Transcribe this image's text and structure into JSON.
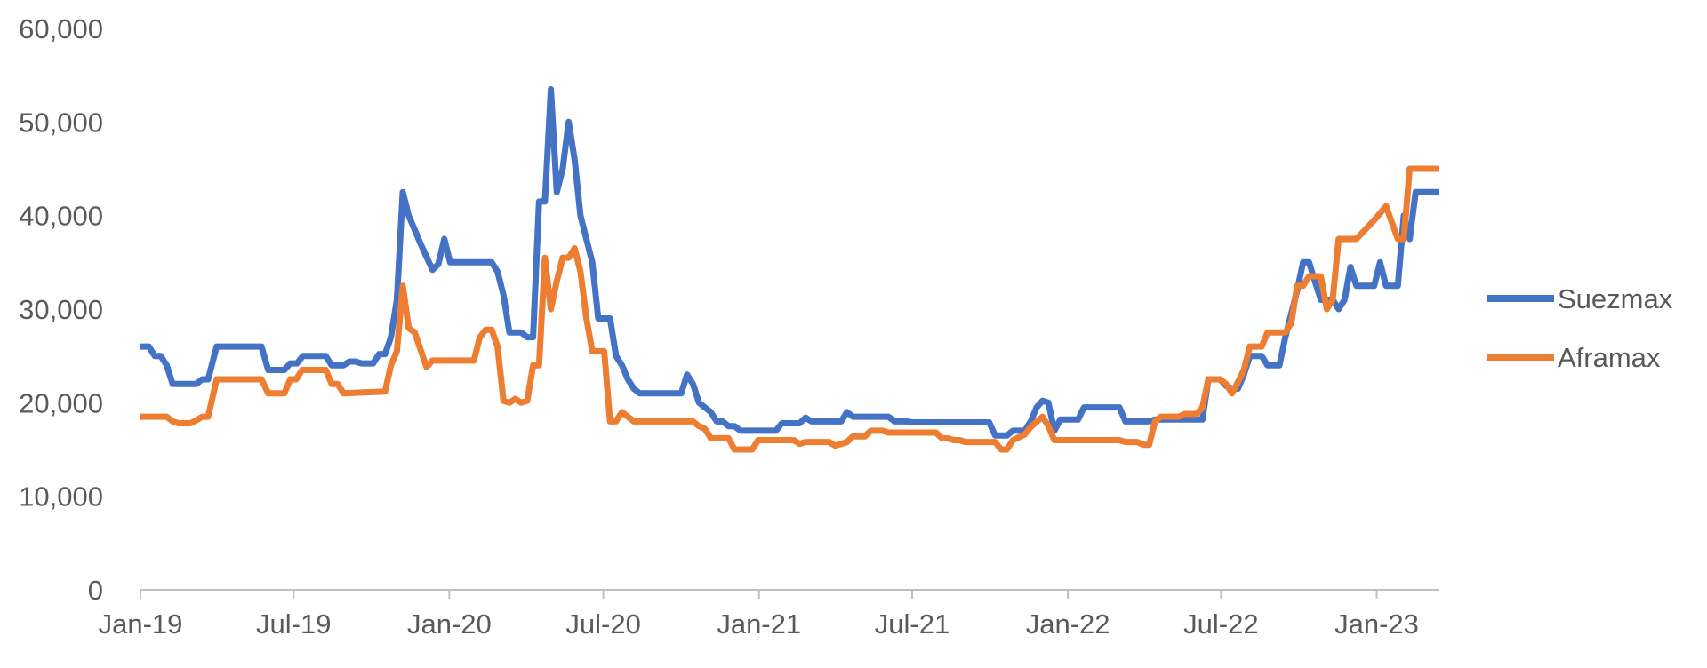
{
  "chart_data": {
    "type": "line",
    "title": "",
    "xlabel": "",
    "ylabel": "",
    "ylim": [
      0,
      60000
    ],
    "yticks": [
      0,
      10000,
      20000,
      30000,
      40000,
      50000,
      60000
    ],
    "ytick_labels": [
      "0",
      "10,000",
      "20,000",
      "30,000",
      "40,000",
      "50,000",
      "60,000"
    ],
    "xticks": [
      "2019-01-01",
      "2019-07-01",
      "2020-01-01",
      "2020-07-01",
      "2021-01-01",
      "2021-07-01",
      "2022-01-01",
      "2022-07-01",
      "2023-01-01"
    ],
    "xtick_labels": [
      "Jan-19",
      "Jul-19",
      "Jan-20",
      "Jul-20",
      "Jan-21",
      "Jul-21",
      "Jan-22",
      "Jul-22",
      "Jan-23"
    ],
    "xlim": [
      "2019-01-01",
      "2023-03-15"
    ],
    "grid": false,
    "legend": "right",
    "series": [
      {
        "name": "Suezmax",
        "color": "#4472C4",
        "points": [
          [
            "2019-01-01",
            26000
          ],
          [
            "2019-01-11",
            26000
          ],
          [
            "2019-01-18",
            25000
          ],
          [
            "2019-01-25",
            25000
          ],
          [
            "2019-02-01",
            24000
          ],
          [
            "2019-02-08",
            22000
          ],
          [
            "2019-03-08",
            22000
          ],
          [
            "2019-03-15",
            22500
          ],
          [
            "2019-03-22",
            22500
          ],
          [
            "2019-04-01",
            26000
          ],
          [
            "2019-05-24",
            26000
          ],
          [
            "2019-06-01",
            23500
          ],
          [
            "2019-06-20",
            23500
          ],
          [
            "2019-06-27",
            24200
          ],
          [
            "2019-07-05",
            24200
          ],
          [
            "2019-07-12",
            25000
          ],
          [
            "2019-08-08",
            25000
          ],
          [
            "2019-08-15",
            24000
          ],
          [
            "2019-08-29",
            24000
          ],
          [
            "2019-09-05",
            24400
          ],
          [
            "2019-09-12",
            24400
          ],
          [
            "2019-09-19",
            24200
          ],
          [
            "2019-10-03",
            24200
          ],
          [
            "2019-10-10",
            25200
          ],
          [
            "2019-10-17",
            25200
          ],
          [
            "2019-10-24",
            27000
          ],
          [
            "2019-10-31",
            31000
          ],
          [
            "2019-11-07",
            42500
          ],
          [
            "2019-11-14",
            40000
          ],
          [
            "2019-11-28",
            37000
          ],
          [
            "2019-12-12",
            34200
          ],
          [
            "2019-12-19",
            34800
          ],
          [
            "2019-12-26",
            37500
          ],
          [
            "2020-01-02",
            35000
          ],
          [
            "2020-02-20",
            35000
          ],
          [
            "2020-02-27",
            34000
          ],
          [
            "2020-03-05",
            31500
          ],
          [
            "2020-03-12",
            27500
          ],
          [
            "2020-03-26",
            27500
          ],
          [
            "2020-04-02",
            27000
          ],
          [
            "2020-04-09",
            27000
          ],
          [
            "2020-04-16",
            41500
          ],
          [
            "2020-04-23",
            41500
          ],
          [
            "2020-04-30",
            53500
          ],
          [
            "2020-05-07",
            42500
          ],
          [
            "2020-05-14",
            45000
          ],
          [
            "2020-05-21",
            50000
          ],
          [
            "2020-05-28",
            46000
          ],
          [
            "2020-06-04",
            40000
          ],
          [
            "2020-06-18",
            35000
          ],
          [
            "2020-06-25",
            29000
          ],
          [
            "2020-07-09",
            29000
          ],
          [
            "2020-07-16",
            25000
          ],
          [
            "2020-07-23",
            24000
          ],
          [
            "2020-07-30",
            22500
          ],
          [
            "2020-08-06",
            21500
          ],
          [
            "2020-08-13",
            21000
          ],
          [
            "2020-10-01",
            21000
          ],
          [
            "2020-10-08",
            23000
          ],
          [
            "2020-10-15",
            22000
          ],
          [
            "2020-10-22",
            20000
          ],
          [
            "2020-11-05",
            19000
          ],
          [
            "2020-11-12",
            18000
          ],
          [
            "2020-11-19",
            18000
          ],
          [
            "2020-11-26",
            17500
          ],
          [
            "2020-12-03",
            17500
          ],
          [
            "2020-12-10",
            17000
          ],
          [
            "2021-01-21",
            17000
          ],
          [
            "2021-01-28",
            17800
          ],
          [
            "2021-02-18",
            17800
          ],
          [
            "2021-02-25",
            18400
          ],
          [
            "2021-03-04",
            18000
          ],
          [
            "2021-04-08",
            18000
          ],
          [
            "2021-04-15",
            19000
          ],
          [
            "2021-04-22",
            18500
          ],
          [
            "2021-06-03",
            18500
          ],
          [
            "2021-06-10",
            18000
          ],
          [
            "2021-06-24",
            18000
          ],
          [
            "2021-07-01",
            17900
          ],
          [
            "2021-09-30",
            17900
          ],
          [
            "2021-10-07",
            16500
          ],
          [
            "2021-10-21",
            16500
          ],
          [
            "2021-10-28",
            17000
          ],
          [
            "2021-11-11",
            17000
          ],
          [
            "2021-11-18",
            18000
          ],
          [
            "2021-11-25",
            19500
          ],
          [
            "2021-12-02",
            20200
          ],
          [
            "2021-12-09",
            20000
          ],
          [
            "2021-12-16",
            17000
          ],
          [
            "2021-12-23",
            18200
          ],
          [
            "2022-01-13",
            18200
          ],
          [
            "2022-01-20",
            19500
          ],
          [
            "2022-03-03",
            19500
          ],
          [
            "2022-03-10",
            18000
          ],
          [
            "2022-04-07",
            18000
          ],
          [
            "2022-04-14",
            18200
          ],
          [
            "2022-06-09",
            18200
          ],
          [
            "2022-06-16",
            22500
          ],
          [
            "2022-06-30",
            22500
          ],
          [
            "2022-07-07",
            21800
          ],
          [
            "2022-07-14",
            21500
          ],
          [
            "2022-07-21",
            21500
          ],
          [
            "2022-07-28",
            23000
          ],
          [
            "2022-08-04",
            25000
          ],
          [
            "2022-08-18",
            25000
          ],
          [
            "2022-08-25",
            24000
          ],
          [
            "2022-09-08",
            24000
          ],
          [
            "2022-09-15",
            27000
          ],
          [
            "2022-09-29",
            32000
          ],
          [
            "2022-10-06",
            35000
          ],
          [
            "2022-10-13",
            35000
          ],
          [
            "2022-10-20",
            33000
          ],
          [
            "2022-10-27",
            31000
          ],
          [
            "2022-11-10",
            31000
          ],
          [
            "2022-11-17",
            30000
          ],
          [
            "2022-11-24",
            31000
          ],
          [
            "2022-12-01",
            34500
          ],
          [
            "2022-12-08",
            32500
          ],
          [
            "2022-12-29",
            32500
          ],
          [
            "2023-01-05",
            35000
          ],
          [
            "2023-01-12",
            32500
          ],
          [
            "2023-01-26",
            32500
          ],
          [
            "2023-02-02",
            40000
          ],
          [
            "2023-02-09",
            37500
          ],
          [
            "2023-02-16",
            42500
          ],
          [
            "2023-03-15",
            42500
          ]
        ]
      },
      {
        "name": "Aframax",
        "color": "#ED7D31",
        "points": [
          [
            "2019-01-01",
            18500
          ],
          [
            "2019-02-01",
            18500
          ],
          [
            "2019-02-08",
            18000
          ],
          [
            "2019-02-15",
            17800
          ],
          [
            "2019-03-01",
            17800
          ],
          [
            "2019-03-08",
            18100
          ],
          [
            "2019-03-15",
            18500
          ],
          [
            "2019-03-22",
            18500
          ],
          [
            "2019-04-01",
            22500
          ],
          [
            "2019-05-24",
            22500
          ],
          [
            "2019-06-01",
            21000
          ],
          [
            "2019-06-20",
            21000
          ],
          [
            "2019-06-27",
            22500
          ],
          [
            "2019-07-04",
            22500
          ],
          [
            "2019-07-11",
            23500
          ],
          [
            "2019-08-08",
            23500
          ],
          [
            "2019-08-15",
            22000
          ],
          [
            "2019-08-22",
            22000
          ],
          [
            "2019-08-29",
            21000
          ],
          [
            "2019-10-17",
            21200
          ],
          [
            "2019-10-24",
            24000
          ],
          [
            "2019-10-31",
            25500
          ],
          [
            "2019-11-07",
            32500
          ],
          [
            "2019-11-14",
            28000
          ],
          [
            "2019-11-21",
            27500
          ],
          [
            "2019-12-05",
            23800
          ],
          [
            "2019-12-12",
            24500
          ],
          [
            "2020-01-30",
            24500
          ],
          [
            "2020-02-06",
            27000
          ],
          [
            "2020-02-13",
            27800
          ],
          [
            "2020-02-20",
            27800
          ],
          [
            "2020-02-27",
            26000
          ],
          [
            "2020-03-05",
            20200
          ],
          [
            "2020-03-12",
            20000
          ],
          [
            "2020-03-19",
            20400
          ],
          [
            "2020-03-26",
            20000
          ],
          [
            "2020-04-02",
            20200
          ],
          [
            "2020-04-09",
            24000
          ],
          [
            "2020-04-16",
            24000
          ],
          [
            "2020-04-23",
            35500
          ],
          [
            "2020-04-30",
            30000
          ],
          [
            "2020-05-07",
            33000
          ],
          [
            "2020-05-14",
            35500
          ],
          [
            "2020-05-21",
            35500
          ],
          [
            "2020-05-28",
            36500
          ],
          [
            "2020-06-04",
            34000
          ],
          [
            "2020-06-11",
            29000
          ],
          [
            "2020-06-18",
            25500
          ],
          [
            "2020-07-02",
            25500
          ],
          [
            "2020-07-09",
            18000
          ],
          [
            "2020-07-16",
            18000
          ],
          [
            "2020-07-23",
            19000
          ],
          [
            "2020-07-30",
            18500
          ],
          [
            "2020-08-06",
            18000
          ],
          [
            "2020-10-15",
            18000
          ],
          [
            "2020-10-22",
            17500
          ],
          [
            "2020-10-29",
            17200
          ],
          [
            "2020-11-05",
            16200
          ],
          [
            "2020-11-26",
            16200
          ],
          [
            "2020-12-03",
            15000
          ],
          [
            "2020-12-24",
            15000
          ],
          [
            "2020-12-31",
            16000
          ],
          [
            "2021-02-11",
            16000
          ],
          [
            "2021-02-18",
            15600
          ],
          [
            "2021-02-25",
            15800
          ],
          [
            "2021-03-25",
            15800
          ],
          [
            "2021-04-01",
            15400
          ],
          [
            "2021-04-15",
            15800
          ],
          [
            "2021-04-22",
            16400
          ],
          [
            "2021-05-06",
            16400
          ],
          [
            "2021-05-13",
            17000
          ],
          [
            "2021-05-27",
            17000
          ],
          [
            "2021-06-03",
            16800
          ],
          [
            "2021-07-29",
            16800
          ],
          [
            "2021-08-05",
            16200
          ],
          [
            "2021-08-12",
            16200
          ],
          [
            "2021-08-19",
            16000
          ],
          [
            "2021-08-26",
            16000
          ],
          [
            "2021-09-02",
            15800
          ],
          [
            "2021-10-07",
            15800
          ],
          [
            "2021-10-14",
            15000
          ],
          [
            "2021-10-21",
            15000
          ],
          [
            "2021-10-28",
            16000
          ],
          [
            "2021-11-11",
            16600
          ],
          [
            "2021-11-18",
            17400
          ],
          [
            "2021-12-02",
            18500
          ],
          [
            "2021-12-09",
            17500
          ],
          [
            "2021-12-16",
            16000
          ],
          [
            "2022-03-03",
            16000
          ],
          [
            "2022-03-10",
            15800
          ],
          [
            "2022-03-24",
            15800
          ],
          [
            "2022-03-31",
            15500
          ],
          [
            "2022-04-07",
            15500
          ],
          [
            "2022-04-14",
            18000
          ],
          [
            "2022-04-21",
            18500
          ],
          [
            "2022-05-12",
            18500
          ],
          [
            "2022-05-19",
            18800
          ],
          [
            "2022-06-02",
            18800
          ],
          [
            "2022-06-09",
            19500
          ],
          [
            "2022-06-16",
            22500
          ],
          [
            "2022-06-30",
            22500
          ],
          [
            "2022-07-07",
            22000
          ],
          [
            "2022-07-14",
            21000
          ],
          [
            "2022-07-21",
            22200
          ],
          [
            "2022-07-28",
            23500
          ],
          [
            "2022-08-04",
            26000
          ],
          [
            "2022-08-18",
            26000
          ],
          [
            "2022-08-25",
            27500
          ],
          [
            "2022-09-15",
            27500
          ],
          [
            "2022-09-22",
            28500
          ],
          [
            "2022-09-29",
            32500
          ],
          [
            "2022-10-06",
            32500
          ],
          [
            "2022-10-13",
            33500
          ],
          [
            "2022-10-27",
            33500
          ],
          [
            "2022-11-03",
            30000
          ],
          [
            "2022-11-10",
            31000
          ],
          [
            "2022-11-17",
            37500
          ],
          [
            "2022-12-08",
            37500
          ],
          [
            "2022-12-29",
            39500
          ],
          [
            "2023-01-12",
            41000
          ],
          [
            "2023-01-26",
            37500
          ],
          [
            "2023-02-02",
            37500
          ],
          [
            "2023-02-09",
            45000
          ],
          [
            "2023-03-15",
            45000
          ]
        ]
      }
    ]
  }
}
